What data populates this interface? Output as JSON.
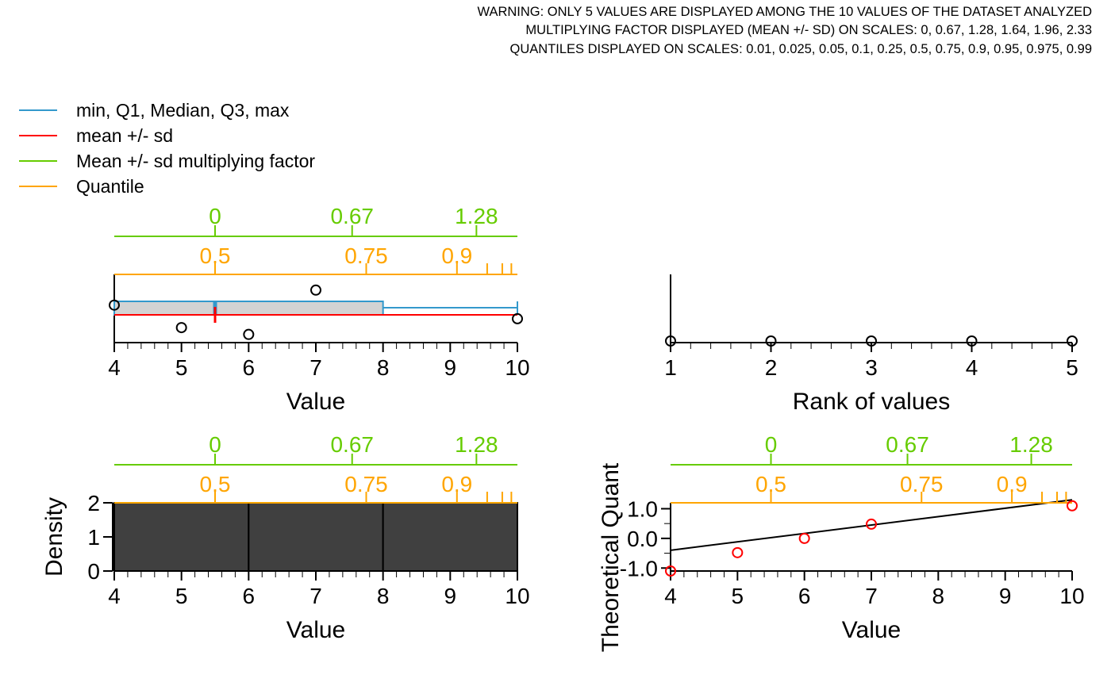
{
  "header": {
    "lines": [
      "WARNING: ONLY 5 VALUES ARE DISPLAYED AMONG THE 10 VALUES OF THE DATASET ANALYZED",
      "MULTIPLYING FACTOR DISPLAYED (MEAN +/- SD) ON SCALES: 0, 0.67, 1.28, 1.64, 1.96, 2.33",
      "QUANTILES DISPLAYED ON SCALES: 0.01, 0.025, 0.05, 0.1, 0.25, 0.5, 0.75, 0.9, 0.95, 0.975, 0.99"
    ]
  },
  "legend": {
    "items": [
      {
        "label": "min, Q1, Median, Q3, max",
        "color": "#3399CC"
      },
      {
        "label": "mean +/- sd",
        "color": "#FF0000"
      },
      {
        "label": "Mean +/- sd multiplying factor",
        "color": "#66CC00"
      },
      {
        "label": "Quantile",
        "color": "#FFA500"
      }
    ]
  },
  "colors": {
    "boxplot": "#3399CC",
    "mean_sd": "#FF0000",
    "factor": "#66CC00",
    "quantile": "#FFA500",
    "box_fill": "#D3D3D3",
    "hist_fill": "#404040",
    "qq_points": "#FF0000",
    "axis": "#000000"
  },
  "chart_data": [
    {
      "type": "boxplot",
      "panel": "top-left",
      "xlabel": "Value",
      "xlim": [
        4,
        10
      ],
      "x_ticks": [
        "4",
        "5",
        "6",
        "7",
        "8",
        "9",
        "10"
      ],
      "points": [
        {
          "x": 4,
          "y": 0.55
        },
        {
          "x": 5,
          "y": 0.22
        },
        {
          "x": 6,
          "y": 0.12
        },
        {
          "x": 7,
          "y": 0.77
        },
        {
          "x": 10,
          "y": 0.35
        }
      ],
      "box": {
        "min": 4,
        "q1": 4,
        "median": 5.5,
        "q3": 8,
        "max": 10
      },
      "mean": 5.5,
      "sd_line": [
        4,
        10
      ],
      "factor_scale": {
        "labels": [
          "0",
          "0.67",
          "1.28"
        ],
        "positions": [
          5.5,
          7.54,
          9.39
        ]
      },
      "quantile_scale": {
        "labels": [
          "0.5",
          "0.75",
          "0.9"
        ],
        "positions": [
          5.5,
          7.75,
          9.1
        ],
        "unlabeled_positions": [
          9.55,
          9.775,
          9.91
        ]
      }
    },
    {
      "type": "scatter",
      "panel": "top-right",
      "xlabel": "Rank of values",
      "xlim": [
        1,
        5
      ],
      "x_ticks": [
        "1",
        "2",
        "3",
        "4",
        "5"
      ],
      "points": [
        {
          "x": 1,
          "y": 0
        },
        {
          "x": 2,
          "y": 0
        },
        {
          "x": 3,
          "y": 0
        },
        {
          "x": 4,
          "y": 0
        },
        {
          "x": 5,
          "y": 0
        }
      ]
    },
    {
      "type": "bar",
      "panel": "bottom-left",
      "xlabel": "Value",
      "ylabel": "Density",
      "xlim": [
        4,
        10
      ],
      "ylim": [
        0,
        2
      ],
      "x_ticks": [
        "4",
        "5",
        "6",
        "7",
        "8",
        "9",
        "10"
      ],
      "y_ticks": [
        "0",
        "1",
        "2"
      ],
      "bins": [
        {
          "from": 4,
          "to": 6,
          "density": 2
        },
        {
          "from": 6,
          "to": 8,
          "density": 2
        },
        {
          "from": 8,
          "to": 10,
          "density": 2
        }
      ],
      "factor_scale": {
        "labels": [
          "0",
          "0.67",
          "1.28"
        ],
        "positions": [
          5.5,
          7.54,
          9.39
        ]
      },
      "quantile_scale": {
        "labels": [
          "0.5",
          "0.75",
          "0.9"
        ],
        "positions": [
          5.5,
          7.75,
          9.1
        ],
        "unlabeled_positions": [
          9.55,
          9.775,
          9.91
        ]
      }
    },
    {
      "type": "scatter",
      "panel": "bottom-right",
      "xlabel": "Value",
      "ylabel": "Theoretical Quant",
      "xlim": [
        4,
        10
      ],
      "ylim": [
        -1.1,
        1.2
      ],
      "x_ticks": [
        "4",
        "5",
        "6",
        "7",
        "8",
        "9",
        "10"
      ],
      "y_ticks": [
        "-1.0",
        "0.0",
        "1.0"
      ],
      "y_tick_values": [
        -1.0,
        0.0,
        1.0
      ],
      "points": [
        {
          "x": 4,
          "y": -1.1
        },
        {
          "x": 5,
          "y": -0.48
        },
        {
          "x": 6,
          "y": 0.0
        },
        {
          "x": 7,
          "y": 0.48
        },
        {
          "x": 10,
          "y": 1.1
        }
      ],
      "fit_line": {
        "x": [
          4,
          10
        ],
        "y": [
          -0.4,
          1.3
        ]
      },
      "factor_scale": {
        "labels": [
          "0",
          "0.67",
          "1.28"
        ],
        "positions": [
          5.5,
          7.54,
          9.39
        ]
      },
      "quantile_scale": {
        "labels": [
          "0.5",
          "0.75",
          "0.9"
        ],
        "positions": [
          5.5,
          7.75,
          9.1
        ],
        "unlabeled_positions": [
          9.55,
          9.775,
          9.91
        ]
      }
    }
  ]
}
